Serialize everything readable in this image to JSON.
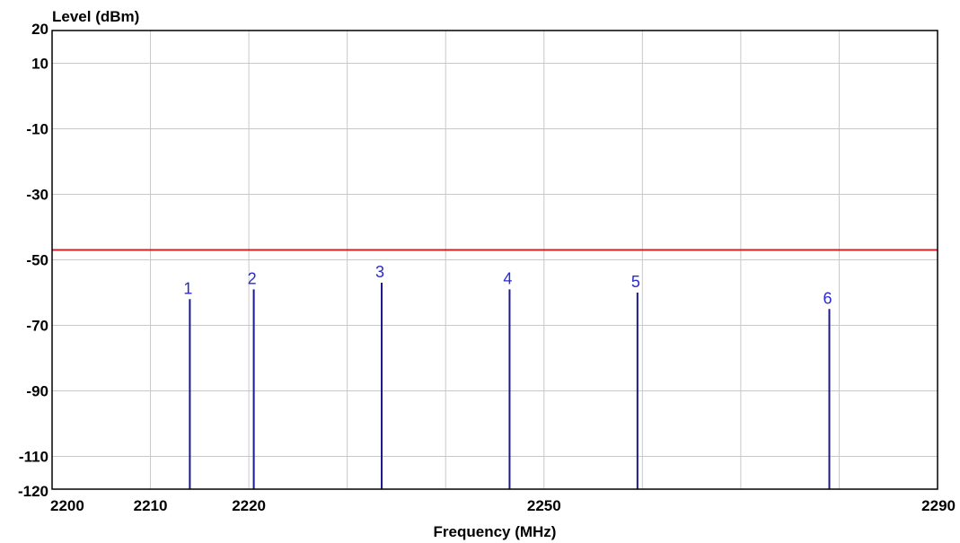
{
  "chart_data": {
    "type": "bar",
    "xlabel": "Frequency (MHz)",
    "ylabel": "Level (dBm)",
    "xlim": [
      2200,
      2290
    ],
    "ylim": [
      -120,
      20
    ],
    "x_ticks": [
      2200,
      2210,
      2220,
      2250,
      2290
    ],
    "y_ticks": [
      20,
      10,
      -10,
      -30,
      -50,
      -70,
      -90,
      -110,
      -120
    ],
    "grid": true,
    "threshold": {
      "value": -47,
      "color": "#cc2222"
    },
    "series": [
      {
        "color": "#1a1a8c",
        "points": [
          {
            "label": "1",
            "x": 2214,
            "y": -62
          },
          {
            "label": "2",
            "x": 2220.5,
            "y": -59
          },
          {
            "label": "3",
            "x": 2233.5,
            "y": -57
          },
          {
            "label": "4",
            "x": 2246.5,
            "y": -59
          },
          {
            "label": "5",
            "x": 2259.5,
            "y": -60
          },
          {
            "label": "6",
            "x": 2279,
            "y": -65
          }
        ]
      }
    ],
    "label_color": "#2a2acc"
  }
}
